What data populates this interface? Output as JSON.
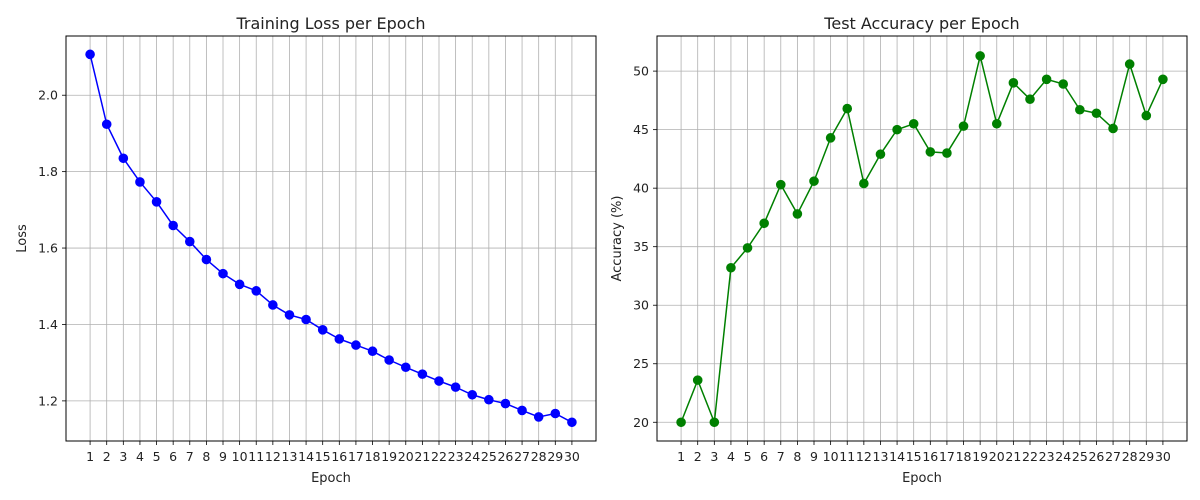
{
  "chart_data": [
    {
      "type": "line",
      "title": "Training Loss per Epoch",
      "xlabel": "Epoch",
      "ylabel": "Loss",
      "x": [
        1,
        2,
        3,
        4,
        5,
        6,
        7,
        8,
        9,
        10,
        11,
        12,
        13,
        14,
        15,
        16,
        17,
        18,
        19,
        20,
        21,
        22,
        23,
        24,
        25,
        26,
        27,
        28,
        29,
        30
      ],
      "ylim": [
        1.095,
        2.155
      ],
      "yticks": [
        1.2,
        1.4,
        1.6,
        1.8,
        2.0
      ],
      "ytick_labels": [
        "1.2",
        "1.4",
        "1.6",
        "1.8",
        "2.0"
      ],
      "grid": true,
      "series": [
        {
          "color": "#0000ff",
          "marker": "circle",
          "values": [
            2.107,
            1.924,
            1.835,
            1.773,
            1.721,
            1.659,
            1.617,
            1.57,
            1.533,
            1.505,
            1.488,
            1.451,
            1.425,
            1.413,
            1.386,
            1.362,
            1.346,
            1.33,
            1.307,
            1.288,
            1.27,
            1.252,
            1.236,
            1.216,
            1.203,
            1.193,
            1.175,
            1.158,
            1.167,
            1.144
          ]
        }
      ]
    },
    {
      "type": "line",
      "title": "Test Accuracy per Epoch",
      "xlabel": "Epoch",
      "ylabel": "Accuracy (%)",
      "x": [
        1,
        2,
        3,
        4,
        5,
        6,
        7,
        8,
        9,
        10,
        11,
        12,
        13,
        14,
        15,
        16,
        17,
        18,
        19,
        20,
        21,
        22,
        23,
        24,
        25,
        26,
        27,
        28,
        29,
        30
      ],
      "ylim": [
        18.4,
        53.0
      ],
      "yticks": [
        20,
        25,
        30,
        35,
        40,
        45,
        50
      ],
      "ytick_labels": [
        "20",
        "25",
        "30",
        "35",
        "40",
        "45",
        "50"
      ],
      "grid": true,
      "series": [
        {
          "color": "#008000",
          "marker": "circle",
          "values": [
            20.0,
            23.6,
            20.0,
            33.2,
            34.9,
            37.0,
            40.3,
            37.8,
            40.6,
            44.3,
            46.8,
            40.4,
            42.9,
            45.0,
            45.5,
            43.1,
            43.0,
            45.3,
            51.3,
            45.5,
            49.0,
            47.6,
            49.3,
            48.9,
            46.7,
            46.4,
            45.1,
            50.6,
            46.2,
            49.3
          ]
        }
      ]
    }
  ]
}
